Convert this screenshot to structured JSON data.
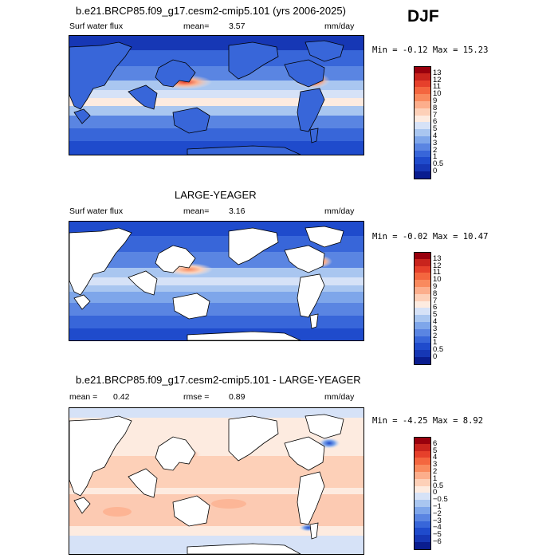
{
  "season": "DJF",
  "panels": [
    {
      "title": "b.e21.BRCP85.f09_g17.cesm2-cmip5.101 (yrs 2006-2025)",
      "left_label": "Surf water flux",
      "stat1_label": "mean=",
      "stat1_value": "3.57",
      "stat2_label": "",
      "stat2_value": "",
      "units": "mm/day",
      "min_max": "Min =  -0.12 Max =  15.23",
      "type": "field"
    },
    {
      "title": "LARGE-YEAGER",
      "left_label": "Surf water flux",
      "stat1_label": "mean=",
      "stat1_value": "3.16",
      "stat2_label": "",
      "stat2_value": "",
      "units": "mm/day",
      "min_max": "Min =  -0.02 Max =  10.47",
      "type": "obs"
    },
    {
      "title": "b.e21.BRCP85.f09_g17.cesm2-cmip5.101 - LARGE-YEAGER",
      "left_label": "",
      "stat1_label": "mean =",
      "stat1_value": "0.42",
      "stat2_label": "rmse =",
      "stat2_value": "0.89",
      "units": "mm/day",
      "min_max": "Min =  -4.25 Max =   8.92",
      "type": "diff"
    }
  ],
  "colorbars": {
    "field": {
      "labels": [
        "13",
        "12",
        "11",
        "10",
        "9",
        "8",
        "7",
        "6",
        "5",
        "4",
        "3",
        "2",
        "1",
        "0.5",
        "0"
      ],
      "colors": [
        "#99000d",
        "#c9241d",
        "#e6402b",
        "#f4663f",
        "#f98a5e",
        "#fcae8c",
        "#fdd0b8",
        "#fdebe0",
        "#d6e2f7",
        "#a9c6f0",
        "#7ea6ea",
        "#5a85e2",
        "#3866d9",
        "#1f4bcc",
        "#1637b5",
        "#0a1d8f"
      ]
    },
    "diff": {
      "labels": [
        "6",
        "5",
        "4",
        "3",
        "2",
        "1",
        "0.5",
        "0",
        "−0.5",
        "−1",
        "−2",
        "−3",
        "−4",
        "−5",
        "−6"
      ],
      "colors": [
        "#99000d",
        "#c9241d",
        "#e6402b",
        "#f4663f",
        "#f98a5e",
        "#fcae8c",
        "#fdd0b8",
        "#fdebe0",
        "#d6e2f7",
        "#a9c6f0",
        "#7ea6ea",
        "#5a85e2",
        "#3866d9",
        "#1f4bcc",
        "#1637b5",
        "#0a1d8f"
      ]
    }
  }
}
